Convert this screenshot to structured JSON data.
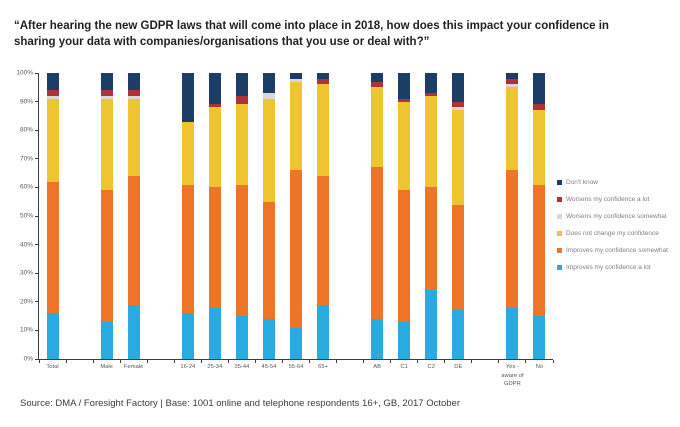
{
  "title": "“After hearing the new GDPR laws that will come into place in 2018, how does this impact your confidence in sharing your data with companies/organisations that you use or deal with?”",
  "source": "Source: DMA / Foresight Factory | Base: 1001 online and telephone respondents 16+, GB, 2017 October",
  "chart_data": {
    "type": "bar",
    "subtype": "stacked-percent",
    "grid": false,
    "legend_position": "right",
    "ylim": [
      0,
      100
    ],
    "yaxis_ticks": [
      "0%",
      "10%",
      "20%",
      "30%",
      "40%",
      "50%",
      "60%",
      "70%",
      "80%",
      "90%",
      "100%"
    ],
    "categories": [
      "Total",
      "Male",
      "Female",
      "16-24",
      "25-34",
      "35-44",
      "45-54",
      "55-64",
      "65+",
      "AB",
      "C1",
      "C2",
      "DE",
      "Yes -\naware of\nGDPR",
      "No"
    ],
    "category_slots": [
      0,
      2,
      3,
      5,
      6,
      7,
      8,
      9,
      10,
      12,
      13,
      14,
      15,
      17,
      18
    ],
    "slot_count": 19,
    "series": [
      {
        "name": "Don't know",
        "color": "#1c3d66",
        "values": [
          6,
          6,
          6,
          17,
          11,
          8,
          7,
          2,
          2,
          3,
          9,
          7,
          10,
          2,
          11
        ]
      },
      {
        "name": "Worsens my confidence a lot",
        "color": "#b03238",
        "values": [
          2,
          2,
          2,
          0,
          1,
          3,
          0,
          0,
          2,
          2,
          1,
          1,
          2,
          2,
          2
        ]
      },
      {
        "name": "Worsens my confidence somewhat",
        "color": "#d8d8d8",
        "values": [
          1,
          1,
          1,
          0,
          0,
          0,
          2,
          1,
          0,
          0,
          0,
          0,
          1,
          1,
          0
        ]
      },
      {
        "name": "Does not change my confidence",
        "color": "#eec431",
        "values": [
          29,
          32,
          27,
          22,
          28,
          28,
          36,
          31,
          32,
          28,
          31,
          32,
          33,
          29,
          26
        ]
      },
      {
        "name": "Improves my confidence somewhat",
        "color": "#ee7428",
        "values": [
          46,
          46,
          45,
          45,
          42,
          46,
          41,
          55,
          45,
          53,
          46,
          36,
          37,
          48,
          46
        ]
      },
      {
        "name": "Improves my confidence a lot",
        "color": "#29abe2",
        "values": [
          16,
          13,
          19,
          16,
          18,
          15,
          14,
          11,
          19,
          14,
          13,
          24,
          17,
          18,
          15
        ]
      }
    ]
  }
}
